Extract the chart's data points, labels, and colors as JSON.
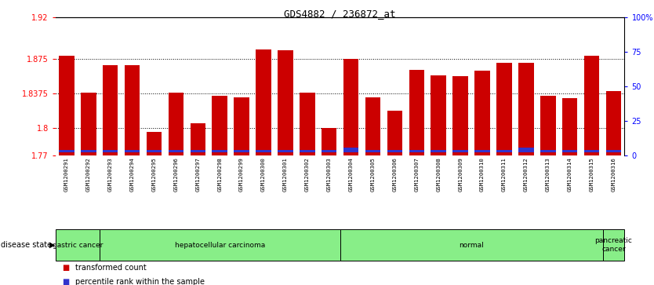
{
  "title": "GDS4882 / 236872_at",
  "samples": [
    "GSM1200291",
    "GSM1200292",
    "GSM1200293",
    "GSM1200294",
    "GSM1200295",
    "GSM1200296",
    "GSM1200297",
    "GSM1200298",
    "GSM1200299",
    "GSM1200300",
    "GSM1200301",
    "GSM1200302",
    "GSM1200303",
    "GSM1200304",
    "GSM1200305",
    "GSM1200306",
    "GSM1200307",
    "GSM1200308",
    "GSM1200309",
    "GSM1200310",
    "GSM1200311",
    "GSM1200312",
    "GSM1200313",
    "GSM1200314",
    "GSM1200315",
    "GSM1200316"
  ],
  "red_values": [
    1.878,
    1.838,
    1.868,
    1.868,
    1.795,
    1.838,
    1.805,
    1.835,
    1.833,
    1.885,
    1.884,
    1.838,
    1.8,
    1.875,
    1.833,
    1.818,
    1.863,
    1.857,
    1.856,
    1.862,
    1.87,
    1.87,
    1.835,
    1.832,
    1.878,
    1.84
  ],
  "blue_heights": [
    0.003,
    0.003,
    0.003,
    0.003,
    0.003,
    0.003,
    0.003,
    0.003,
    0.003,
    0.003,
    0.003,
    0.003,
    0.003,
    0.005,
    0.003,
    0.003,
    0.003,
    0.003,
    0.003,
    0.003,
    0.003,
    0.005,
    0.003,
    0.003,
    0.003,
    0.003
  ],
  "ymin": 1.77,
  "ymax": 1.92,
  "yticks": [
    1.77,
    1.8,
    1.8375,
    1.875,
    1.92
  ],
  "ytick_labels": [
    "1.77",
    "1.8",
    "1.8375",
    "1.875",
    "1.92"
  ],
  "right_yticks_pct": [
    0,
    25,
    50,
    75,
    100
  ],
  "right_ytick_labels": [
    "0",
    "25",
    "50",
    "75",
    "100%"
  ],
  "group_boundaries": [
    {
      "label": "gastric cancer",
      "start": 0,
      "end": 2
    },
    {
      "label": "hepatocellular carcinoma",
      "start": 2,
      "end": 13
    },
    {
      "label": "normal",
      "start": 13,
      "end": 25
    },
    {
      "label": "pancreatic\ncancer",
      "start": 25,
      "end": 26
    }
  ],
  "bar_color": "#cc0000",
  "blue_color": "#3333cc",
  "grid_color": "#000000",
  "label_bg": "#cccccc",
  "disease_bg": "#88ee88",
  "legend_red": "transformed count",
  "legend_blue": "percentile rank within the sample"
}
